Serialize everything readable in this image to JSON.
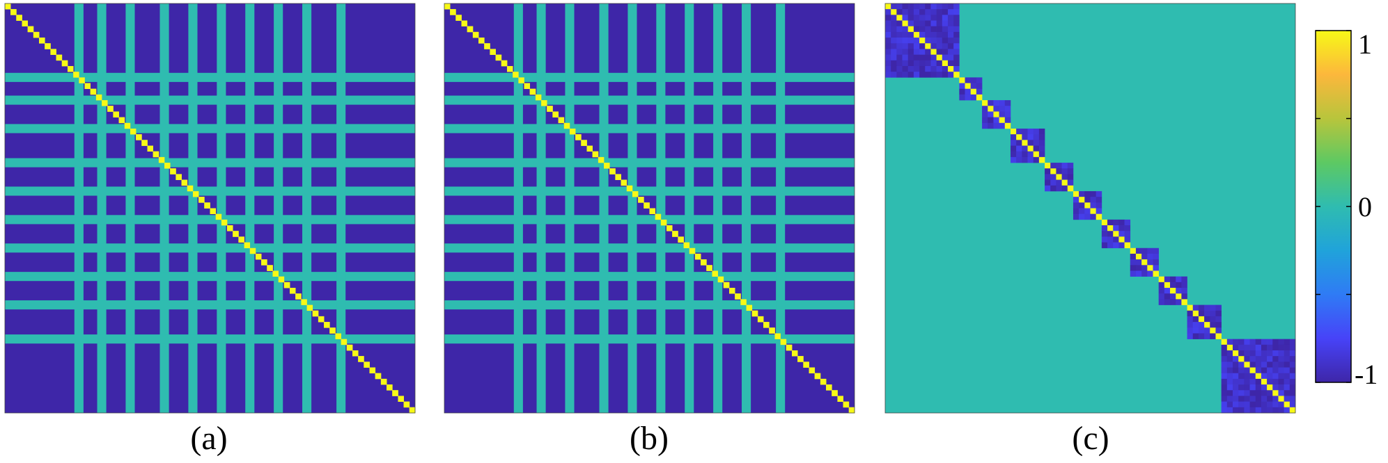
{
  "chart_data": [
    {
      "type": "heatmap",
      "panel_label": "(a)",
      "blocks": 11,
      "block_sizes": [
        13,
        4,
        5,
        6,
        5,
        5,
        5,
        5,
        5,
        6,
        13
      ],
      "within_block_value": -1,
      "between_block_value": 0,
      "diagonal_value": 1,
      "noise": 0,
      "colorbar": {
        "ticks": [
          -1,
          0,
          1
        ]
      }
    },
    {
      "type": "heatmap",
      "panel_label": "(b)",
      "blocks": 11,
      "block_sizes": [
        13,
        4,
        5,
        6,
        5,
        5,
        5,
        5,
        5,
        6,
        13
      ],
      "within_block_value": -1,
      "between_block_value": 0,
      "diagonal_value": 1,
      "noise": 0,
      "colorbar": {
        "ticks": [
          -1,
          0,
          1
        ]
      }
    },
    {
      "type": "heatmap",
      "panel_label": "(c)",
      "blocks": 11,
      "block_sizes": [
        13,
        4,
        5,
        6,
        5,
        5,
        5,
        5,
        5,
        6,
        13
      ],
      "within_block_value": -0.9,
      "between_block_value": 0,
      "diagonal_value": 1,
      "noise": 0.12,
      "colorbar": {
        "ticks": [
          -1,
          0,
          1
        ]
      }
    }
  ],
  "colorbar": {
    "range": [
      -1,
      1
    ],
    "ticks": [
      {
        "value": 1,
        "label": "1"
      },
      {
        "value": 0,
        "label": "0"
      },
      {
        "value": -1,
        "label": "-1"
      }
    ],
    "colormap": [
      "#3e26a8",
      "#4743f8",
      "#2f7bf5",
      "#20a3da",
      "#2fbcb0",
      "#5dc963",
      "#b8c53c",
      "#fcb73c",
      "#f7f917"
    ]
  }
}
